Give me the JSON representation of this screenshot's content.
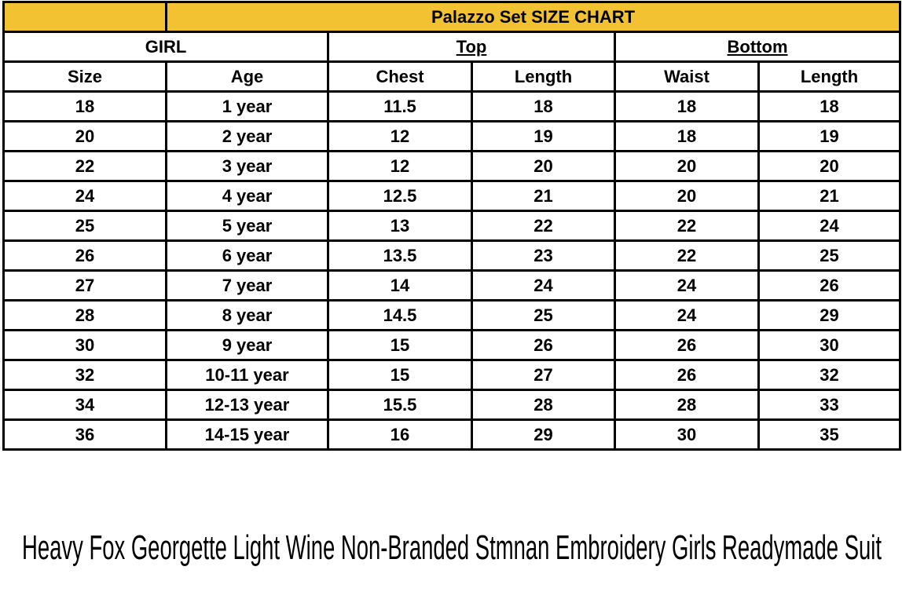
{
  "header": {
    "title": "Palazzo Set SIZE CHART"
  },
  "groups": [
    "GIRL",
    "Top",
    "Bottom"
  ],
  "table": {
    "columns": [
      "Size",
      "Age",
      "Chest",
      "Length",
      "Waist",
      "Length"
    ],
    "rows": [
      [
        18,
        "1 year",
        11.5,
        18,
        18,
        18
      ],
      [
        20,
        "2 year",
        12,
        19,
        18,
        19
      ],
      [
        22,
        "3 year",
        12,
        20,
        20,
        20
      ],
      [
        24,
        "4 year",
        12.5,
        21,
        20,
        21
      ],
      [
        25,
        "5 year",
        13,
        22,
        22,
        24
      ],
      [
        26,
        "6 year",
        13.5,
        23,
        22,
        25
      ],
      [
        27,
        "7 year",
        14,
        24,
        24,
        26
      ],
      [
        28,
        "8 year",
        14.5,
        25,
        24,
        29
      ],
      [
        30,
        "9 year",
        15,
        26,
        26,
        30
      ],
      [
        32,
        "10-11 year",
        15,
        27,
        26,
        32
      ],
      [
        34,
        "12-13 year",
        15.5,
        28,
        28,
        33
      ],
      [
        36,
        "14-15 year",
        16,
        29,
        30,
        35
      ]
    ]
  },
  "caption": "Heavy Fox Georgette Light Wine Non-Branded Stmnan Embroidery Girls Readymade Suit"
}
